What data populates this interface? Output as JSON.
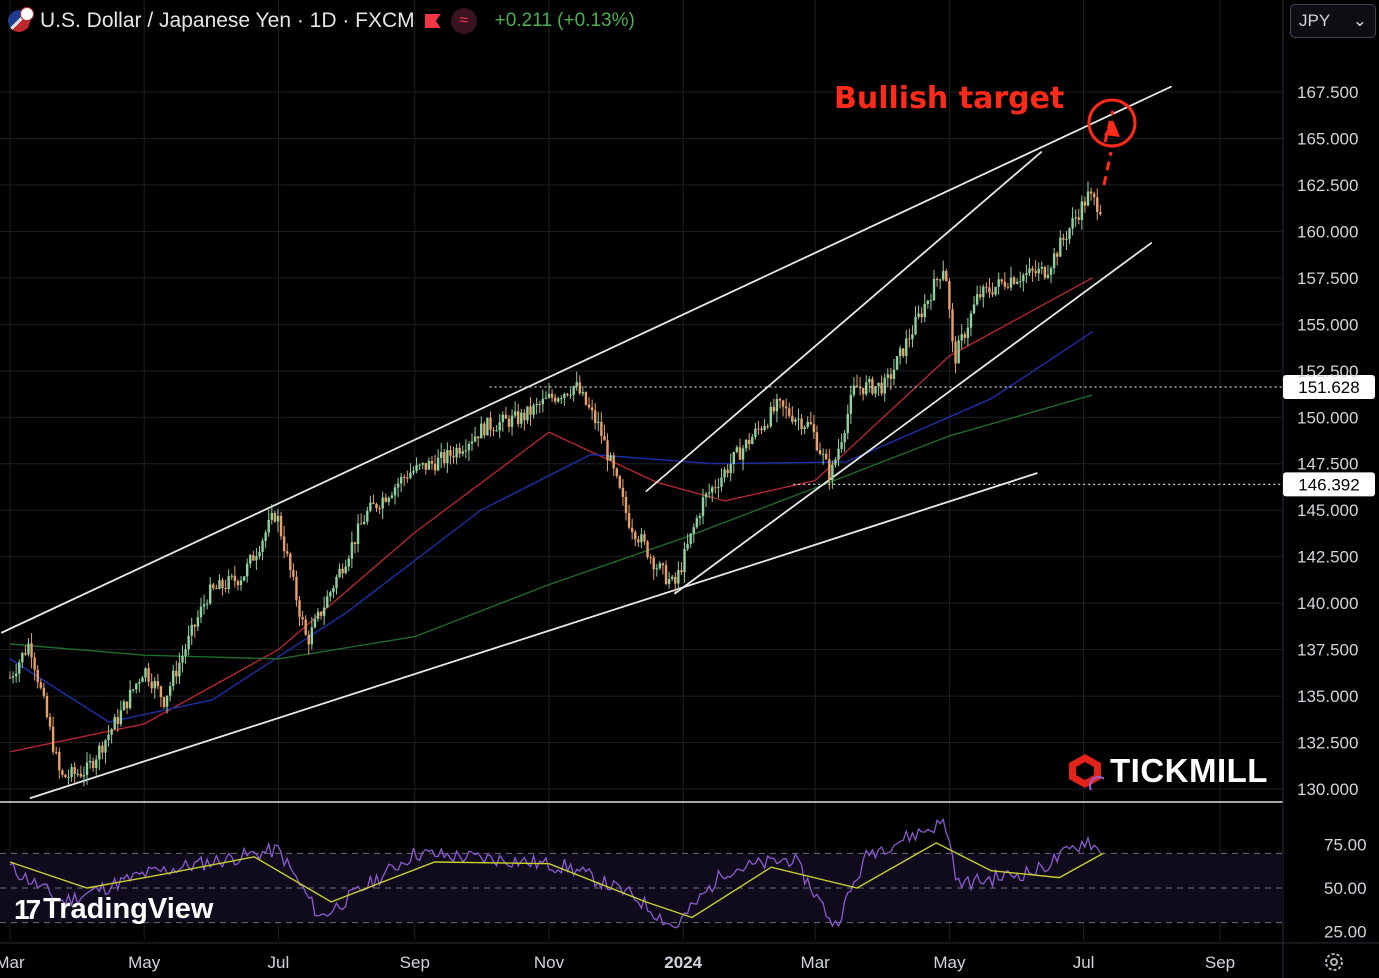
{
  "header": {
    "symbol_title": "U.S. Dollar / Japanese Yen · 1D · FXCM",
    "change": "+0.211 (+0.13%)",
    "currency_select": "JPY",
    "chevron": "⌄"
  },
  "annotation": {
    "text": "Bullish target",
    "color": "#ff2a1a"
  },
  "brand": {
    "tickmill": "TICKMILL",
    "tradingview": "TradingView",
    "tv_mark": "17"
  },
  "colors": {
    "bull": "#8fd19e",
    "bear": "#e8a06a",
    "ma_red": "#b3262d",
    "ma_blue": "#1b2fa6",
    "ma_green": "#1f6b27",
    "rsi": "#8e5ad0",
    "rsi_ma": "#c9d12a",
    "accent": "#ff2a1a"
  },
  "icons": {
    "flag": "us-flag-icon",
    "market": "red-flag-icon",
    "wave": "wave-icon",
    "settings": "gear-icon"
  },
  "chart_data": [
    {
      "type": "line",
      "title": "U.S. Dollar / Japanese Yen · 1D · FXCM",
      "xlabel": "",
      "ylabel": "",
      "x_ticks": [
        "Mar",
        "May",
        "Jul",
        "Sep",
        "Nov",
        "2024",
        "Mar",
        "May",
        "Jul",
        "Sep"
      ],
      "x_tick_dates": [
        "2023-03-01",
        "2023-05-01",
        "2023-07-01",
        "2023-09-01",
        "2023-11-01",
        "2024-01-01",
        "2024-03-01",
        "2024-05-01",
        "2024-07-01",
        "2024-09-01"
      ],
      "y_ticks": [
        "130.000",
        "132.500",
        "135.000",
        "137.500",
        "140.000",
        "142.500",
        "145.000",
        "147.500",
        "150.000",
        "152.500",
        "155.000",
        "157.500",
        "160.000",
        "162.500",
        "165.000",
        "167.500"
      ],
      "ylim": [
        129.3,
        170.3
      ],
      "xlim": [
        "2023-03-01",
        "2024-09-01"
      ],
      "price_labels": [
        {
          "value": "151.628"
        },
        {
          "value": "146.392"
        }
      ],
      "series": [
        {
          "x": [
            "2023-03-01",
            "2023-03-10",
            "2023-03-24",
            "2023-04-05",
            "2023-04-20",
            "2023-05-01",
            "2023-05-10",
            "2023-05-30",
            "2023-06-15",
            "2023-06-30",
            "2023-07-14",
            "2023-07-28",
            "2023-08-10",
            "2023-08-29",
            "2023-09-15",
            "2023-10-03",
            "2023-10-20",
            "2023-11-01",
            "2023-11-13",
            "2023-11-24",
            "2023-12-07",
            "2023-12-20",
            "2023-12-28",
            "2024-01-10",
            "2024-01-25",
            "2024-02-13",
            "2024-02-28",
            "2024-03-08",
            "2024-03-19",
            "2024-04-02",
            "2024-04-29",
            "2024-05-03",
            "2024-05-14",
            "2024-05-29",
            "2024-06-14",
            "2024-06-28",
            "2024-07-03",
            "2024-07-10"
          ],
          "values": [
            136.0,
            137.9,
            130.6,
            131.0,
            134.0,
            136.5,
            134.8,
            140.5,
            141.5,
            144.9,
            137.9,
            141.5,
            144.8,
            147.0,
            147.8,
            149.5,
            150.0,
            151.0,
            151.7,
            149.4,
            144.5,
            142.0,
            140.9,
            145.5,
            147.9,
            150.6,
            149.5,
            146.8,
            151.6,
            151.7,
            158.3,
            153.0,
            156.5,
            157.5,
            157.9,
            160.9,
            161.9,
            161.2
          ]
        },
        {
          "x": [
            "2023-03-01",
            "2023-05-01",
            "2023-07-01",
            "2023-09-01",
            "2023-11-01",
            "2023-12-20",
            "2024-01-20",
            "2024-03-01",
            "2024-05-01",
            "2024-07-05"
          ],
          "values": [
            132.0,
            133.5,
            137.5,
            143.8,
            149.2,
            146.5,
            145.5,
            146.6,
            153.3,
            157.5
          ]
        },
        {
          "x": [
            "2023-03-01",
            "2023-04-15",
            "2023-06-01",
            "2023-08-01",
            "2023-10-01",
            "2023-11-20",
            "2024-01-15",
            "2024-03-15",
            "2024-05-20",
            "2024-07-05"
          ],
          "values": [
            137.0,
            133.6,
            134.8,
            139.5,
            145.0,
            148.0,
            147.5,
            147.6,
            151.0,
            154.6
          ]
        },
        {
          "x": [
            "2023-03-01",
            "2023-05-01",
            "2023-07-01",
            "2023-09-01",
            "2023-11-01",
            "2024-01-01",
            "2024-03-01",
            "2024-05-01",
            "2024-07-05"
          ],
          "values": [
            137.8,
            137.2,
            137.0,
            138.2,
            141.0,
            143.5,
            146.2,
            149.0,
            151.2
          ]
        }
      ]
    },
    {
      "type": "line",
      "y_ticks": [
        "25.00",
        "50.00",
        "75.00"
      ],
      "ylim": [
        20,
        95
      ],
      "series": [
        {
          "x": [
            "2023-03-01",
            "2023-03-25",
            "2023-05-01",
            "2023-05-31",
            "2023-07-01",
            "2023-07-20",
            "2023-09-01",
            "2023-10-15",
            "2023-11-10",
            "2023-12-10",
            "2023-12-28",
            "2024-01-20",
            "2024-02-20",
            "2024-03-10",
            "2024-03-25",
            "2024-04-29",
            "2024-05-05",
            "2024-06-10",
            "2024-07-03",
            "2024-07-10"
          ],
          "values": [
            62,
            42,
            58,
            65,
            72,
            33,
            70,
            66,
            62,
            45,
            27,
            60,
            67,
            28,
            70,
            88,
            52,
            60,
            78,
            68
          ]
        },
        {
          "x": [
            "2023-03-01",
            "2023-04-05",
            "2023-05-10",
            "2023-06-20",
            "2023-07-25",
            "2023-09-10",
            "2023-11-01",
            "2023-12-15",
            "2024-01-05",
            "2024-02-10",
            "2024-03-20",
            "2024-04-25",
            "2024-05-20",
            "2024-06-20",
            "2024-07-10"
          ],
          "values": [
            65,
            50,
            58,
            68,
            42,
            65,
            64,
            42,
            33,
            62,
            50,
            76,
            60,
            56,
            70
          ]
        }
      ]
    }
  ]
}
